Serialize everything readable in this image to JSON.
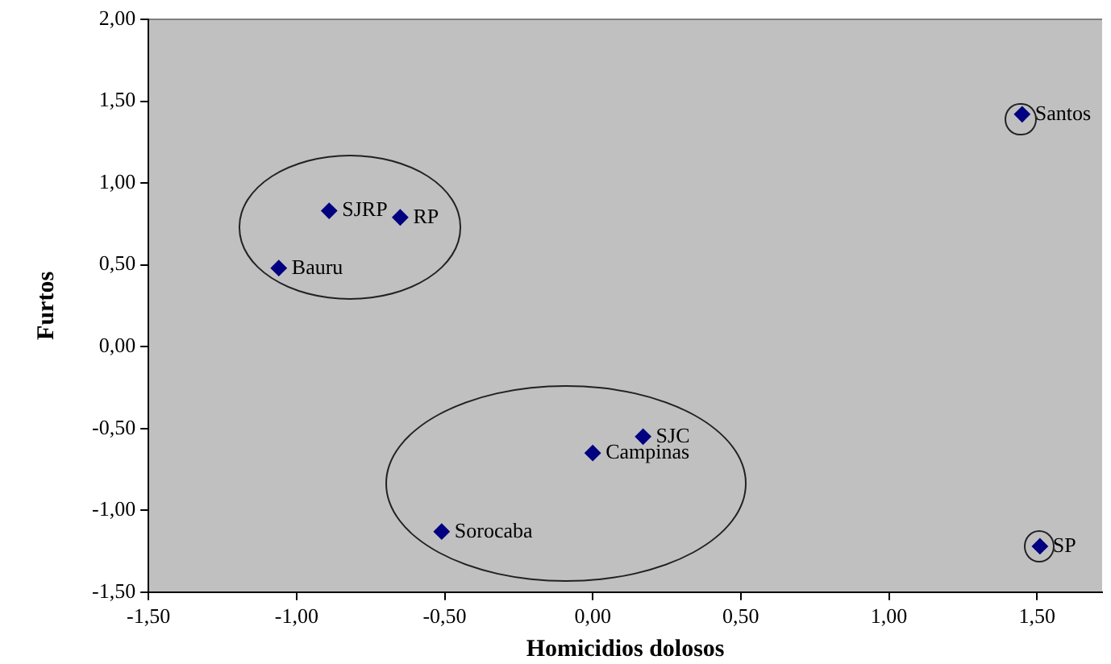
{
  "chart_data": {
    "type": "scatter",
    "xlabel": "Homicidios dolosos",
    "ylabel": "Furtos",
    "x": [
      -0.89,
      -0.65,
      -1.06,
      1.45,
      0.17,
      0.0,
      -0.51,
      1.51
    ],
    "series": [
      {
        "color": "#000080",
        "values": [
          0.83,
          0.79,
          0.48,
          1.42,
          -0.55,
          -0.65,
          -1.13,
          -1.22
        ]
      }
    ],
    "marker": "diamond",
    "xlim": [
      -1.5,
      1.72
    ],
    "xticks": [
      {
        "value": -1.5,
        "label": "-1,50"
      },
      {
        "value": -1.0,
        "label": "-1,00"
      },
      {
        "value": -0.5,
        "label": "-0,50"
      },
      {
        "value": 0,
        "label": "0,00"
      },
      {
        "value": 0.5,
        "label": "0,50"
      },
      {
        "value": 1.0,
        "label": "1,00"
      },
      {
        "value": 1.5,
        "label": "1,50"
      }
    ],
    "ylim": [
      -1.5,
      2.0
    ],
    "yticks": [
      {
        "value": -1.5,
        "label": "-1,50"
      },
      {
        "value": -1.0,
        "label": "-1,00"
      },
      {
        "value": -0.5,
        "label": "-0,50"
      },
      {
        "value": 0,
        "label": "0,00"
      },
      {
        "value": 0.5,
        "label": "0,50"
      },
      {
        "value": 1.0,
        "label": "1,00"
      },
      {
        "value": 1.5,
        "label": "1,50"
      },
      {
        "value": 2.0,
        "label": "2,00"
      }
    ],
    "grid": false,
    "legend": false,
    "annotations": [
      {
        "text": "SJRP",
        "x": -0.89,
        "y": 0.83
      },
      {
        "text": "RP",
        "x": -0.65,
        "y": 0.79
      },
      {
        "text": "Bauru",
        "x": -1.06,
        "y": 0.48
      },
      {
        "text": "Santos",
        "x": 1.45,
        "y": 1.42
      },
      {
        "text": "SJC",
        "x": 0.17,
        "y": -0.55
      },
      {
        "text": "Campinas",
        "x": 0.0,
        "y": -0.65
      },
      {
        "text": "Sorocaba",
        "x": -0.51,
        "y": -1.13
      },
      {
        "text": "SP",
        "x": 1.51,
        "y": -1.22
      }
    ]
  }
}
